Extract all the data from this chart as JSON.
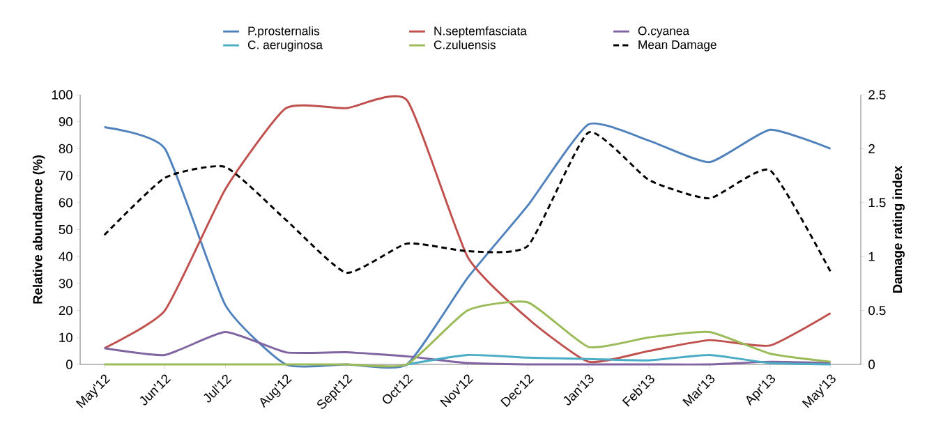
{
  "chart_data": {
    "type": "line",
    "categories": [
      "May'12",
      "Jun'12",
      "Jul'12",
      "Aug'12",
      "Sept'12",
      "Oct'12",
      "Nov'12",
      "Dec'12",
      "Jan'13",
      "Feb'13",
      "Mar'13",
      "Apr'13",
      "May'13"
    ],
    "series": [
      {
        "name": "P.prosternalis",
        "color": "#4f81bd",
        "values": [
          88,
          80,
          22,
          0,
          0,
          0,
          32,
          59,
          89,
          83,
          75,
          87,
          80
        ]
      },
      {
        "name": "N.septemfasciata",
        "color": "#c0504d",
        "values": [
          6,
          20,
          65,
          95,
          95,
          98,
          40,
          17,
          1,
          5,
          9,
          7,
          19
        ]
      },
      {
        "name": "O.cyanea",
        "color": "#8064a2",
        "values": [
          6,
          3.5,
          12,
          4.5,
          4.5,
          3,
          0.5,
          0,
          0,
          0,
          0,
          1,
          0.5
        ]
      },
      {
        "name": "C. aeruginosa",
        "color": "#4bacc6",
        "values": [
          null,
          null,
          null,
          null,
          null,
          0,
          3.5,
          2.5,
          2,
          1.5,
          3.5,
          0.5,
          0
        ]
      },
      {
        "name": "C.zuluensis",
        "color": "#9bbb59",
        "values": [
          0,
          0,
          0,
          0,
          0,
          0,
          20,
          23,
          6.5,
          10,
          12,
          4,
          1
        ]
      },
      {
        "name": "Mean Damage",
        "color": "#000000",
        "axis": "y2",
        "line_style": "dashed",
        "values": [
          1.2,
          1.73,
          1.83,
          1.34,
          0.85,
          1.12,
          1.05,
          1.1,
          2.15,
          1.71,
          1.54,
          1.8,
          0.86
        ]
      }
    ],
    "ylabel": "Relative abundamce (%)",
    "y2label": "Damage rating index",
    "ylim": [
      0,
      100
    ],
    "yticks": [
      0,
      10,
      20,
      30,
      40,
      50,
      60,
      70,
      80,
      90,
      100
    ],
    "y2lim": [
      0,
      2.5
    ],
    "y2ticks": [
      0,
      0.5,
      1,
      1.5,
      2,
      2.5
    ],
    "legend": "top"
  }
}
